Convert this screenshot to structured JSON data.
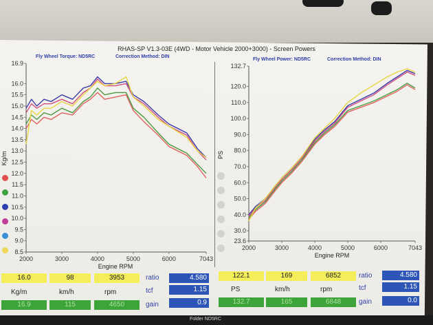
{
  "header": {
    "title": "RHAS-SP V1.3-03E  (4WD - Motor Vehicle 2000+3000) - Screen Powers",
    "left_meta_a": "Fly Wheel Torque: ND5RC",
    "left_meta_b": "Correction Method: DIN",
    "right_meta_a": "Fly Wheel Power: ND5RC",
    "right_meta_b": "Correction Method: DIN"
  },
  "chart_data": [
    {
      "type": "line",
      "xlabel": "Engine RPM",
      "ylabel": "Kg/m",
      "xlim": [
        2000,
        7043
      ],
      "ylim": [
        8.5,
        16.9
      ],
      "x_ticks": [
        "2000",
        "3000",
        "4000",
        "5000",
        "6000",
        "7043"
      ],
      "y_ticks": [
        "16.9",
        "16.0",
        "15.5",
        "15.0",
        "14.5",
        "14.0",
        "13.5",
        "13.0",
        "12.5",
        "12.0",
        "11.5",
        "11.0",
        "10.5",
        "10.0",
        "9.5",
        "9.0",
        "8.5"
      ],
      "series": [
        {
          "color": "#3a3aa8",
          "x": [
            2000,
            2150,
            2300,
            2500,
            2700,
            3000,
            3300,
            3600,
            3800,
            4000,
            4200,
            4500,
            4800,
            5000,
            5300,
            5700,
            6000,
            6500,
            6800,
            7043
          ],
          "y": [
            14.9,
            15.3,
            15.0,
            15.3,
            15.2,
            15.5,
            15.3,
            15.8,
            15.9,
            16.3,
            16.0,
            16.0,
            16.1,
            15.5,
            15.2,
            14.6,
            14.2,
            13.8,
            13.1,
            12.7
          ]
        },
        {
          "color": "#d05080",
          "x": [
            2000,
            2150,
            2300,
            2500,
            2700,
            3000,
            3300,
            3600,
            3800,
            4000,
            4200,
            4500,
            4800,
            5000,
            5300,
            5700,
            6000,
            6500,
            6800,
            7043
          ],
          "y": [
            14.7,
            15.1,
            14.9,
            15.1,
            15.1,
            15.3,
            15.1,
            15.6,
            15.8,
            16.2,
            15.9,
            15.9,
            16.0,
            15.4,
            15.1,
            14.5,
            14.1,
            13.7,
            13.0,
            12.6
          ]
        },
        {
          "color": "#4c9a40",
          "x": [
            2000,
            2150,
            2300,
            2500,
            2700,
            3000,
            3300,
            3600,
            3800,
            4000,
            4200,
            4500,
            4800,
            5000,
            5300,
            5700,
            6000,
            6500,
            6800,
            7043
          ],
          "y": [
            14.2,
            14.6,
            14.4,
            14.7,
            14.6,
            14.9,
            14.7,
            15.2,
            15.4,
            15.8,
            15.5,
            15.6,
            15.6,
            14.9,
            14.5,
            13.8,
            13.3,
            12.9,
            12.4,
            12.0
          ]
        },
        {
          "color": "#e06060",
          "x": [
            2000,
            2150,
            2300,
            2500,
            2700,
            3000,
            3300,
            3600,
            3800,
            4000,
            4200,
            4500,
            4800,
            5000,
            5300,
            5700,
            6000,
            6500,
            6800,
            7043
          ],
          "y": [
            14.0,
            14.4,
            14.2,
            14.5,
            14.4,
            14.7,
            14.6,
            15.1,
            15.3,
            15.6,
            15.3,
            15.4,
            15.5,
            14.8,
            14.3,
            13.7,
            13.2,
            12.8,
            12.3,
            11.8
          ]
        },
        {
          "color": "#e8d640",
          "x": [
            2000,
            2150,
            2300,
            2500,
            2700,
            3000,
            3300,
            3600,
            3800,
            4000,
            4200,
            4500,
            4800,
            5000,
            5300,
            5700,
            6000,
            6500,
            6800,
            7043
          ],
          "y": [
            13.3,
            14.8,
            14.6,
            14.9,
            14.9,
            15.2,
            15.0,
            15.5,
            15.8,
            16.1,
            15.9,
            16.0,
            16.3,
            15.4,
            15.0,
            14.4,
            14.1,
            13.6,
            13.0,
            12.7
          ]
        }
      ]
    },
    {
      "type": "line",
      "xlabel": "Engine RPM",
      "ylabel": "PS",
      "xlim": [
        2000,
        7043
      ],
      "ylim": [
        23.6,
        132.7
      ],
      "x_ticks": [
        "2000",
        "3000",
        "4000",
        "5000",
        "6000",
        "7043"
      ],
      "y_ticks": [
        "132.7",
        "120.0",
        "110.0",
        "100.0",
        "90.0",
        "80.0",
        "70.0",
        "60.0",
        "50.0",
        "40.0",
        "30.0",
        "23.6"
      ],
      "series": [
        {
          "color": "#3a3aa8",
          "x": [
            2000,
            2200,
            2500,
            2800,
            3000,
            3300,
            3600,
            4000,
            4300,
            4600,
            5000,
            5400,
            5800,
            6200,
            6500,
            6800,
            7043
          ],
          "y": [
            40,
            45,
            50,
            58,
            63,
            69,
            76,
            87,
            93,
            98,
            108,
            112,
            116,
            122,
            126,
            130,
            128
          ]
        },
        {
          "color": "#d05080",
          "x": [
            2000,
            2200,
            2500,
            2800,
            3000,
            3300,
            3600,
            4000,
            4300,
            4600,
            5000,
            5400,
            5800,
            6200,
            6500,
            6800,
            7043
          ],
          "y": [
            39,
            44,
            49,
            57,
            62,
            68,
            75,
            86,
            92,
            97,
            107,
            111,
            115,
            121,
            125,
            129,
            127
          ]
        },
        {
          "color": "#4c9a40",
          "x": [
            2000,
            2200,
            2500,
            2800,
            3000,
            3300,
            3600,
            4000,
            4300,
            4600,
            5000,
            5400,
            5800,
            6200,
            6500,
            6800,
            7043
          ],
          "y": [
            38,
            43,
            48,
            56,
            61,
            67,
            74,
            85,
            91,
            96,
            105,
            108,
            111,
            115,
            118,
            122,
            119
          ]
        },
        {
          "color": "#e06060",
          "x": [
            2000,
            2200,
            2500,
            2800,
            3000,
            3300,
            3600,
            4000,
            4300,
            4600,
            5000,
            5400,
            5800,
            6200,
            6500,
            6800,
            7043
          ],
          "y": [
            37,
            42,
            47,
            55,
            60,
            66,
            73,
            84,
            90,
            95,
            104,
            107,
            110,
            114,
            117,
            121,
            118
          ]
        },
        {
          "color": "#e8d640",
          "x": [
            2000,
            2200,
            2500,
            2800,
            3000,
            3300,
            3600,
            4000,
            4300,
            4600,
            5000,
            5400,
            5800,
            6200,
            6500,
            6800,
            7043
          ],
          "y": [
            36,
            44,
            50,
            58,
            63,
            69,
            76,
            88,
            94,
            100,
            110,
            116,
            121,
            126,
            129,
            131,
            129
          ]
        }
      ]
    }
  ],
  "legend_left": [
    "#e05050",
    "#3fa23f",
    "#2e3fae",
    "#c0409a",
    "#3b8fd6",
    "#efd75a"
  ],
  "stats_left": {
    "row1": [
      "16.0",
      "98",
      "3953"
    ],
    "ratio_label": "ratio",
    "ratio": "4.580",
    "row2": [
      "Kg/m",
      "km/h",
      "rpm"
    ],
    "tcf_label": "tcf",
    "tcf": "1.15",
    "row3": [
      "16.9",
      "115",
      "4650"
    ],
    "gain_label": "gain",
    "gain": "0.9"
  },
  "stats_right": {
    "row1": [
      "122.1",
      "169",
      "6852"
    ],
    "ratio_label": "ratio",
    "ratio": "4.580",
    "row2": [
      "PS",
      "km/h",
      "rpm"
    ],
    "tcf_label": "tcf",
    "tcf": "1.15",
    "row3": [
      "132.7",
      "165",
      "6848"
    ],
    "gain_label": "gain",
    "gain": "0.0"
  },
  "footer": {
    "folder": "Folder  ND5RC"
  }
}
